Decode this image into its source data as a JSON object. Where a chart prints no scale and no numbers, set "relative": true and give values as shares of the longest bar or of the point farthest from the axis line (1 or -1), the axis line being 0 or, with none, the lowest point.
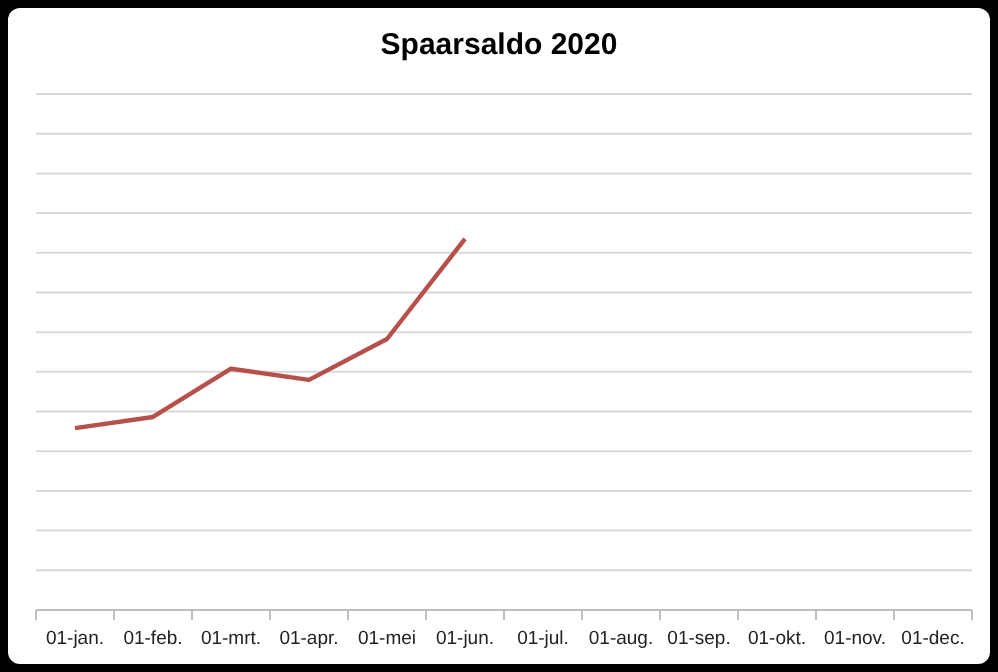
{
  "chart_data": {
    "type": "line",
    "title": "Spaarsaldo 2020",
    "relative": true,
    "grid": "y",
    "categories": [
      "01-jan.",
      "01-feb.",
      "01-mrt.",
      "01-apr.",
      "01-mei",
      "01-jun.",
      "01-jul.",
      "01-aug.",
      "01-sep.",
      "01-okt.",
      "01-nov.",
      "01-dec."
    ],
    "series": [
      {
        "color": "#b5504b",
        "values": [
          0.49,
          0.52,
          0.65,
          0.62,
          0.73,
          1.0,
          null,
          null,
          null,
          null,
          null,
          null
        ]
      }
    ]
  }
}
